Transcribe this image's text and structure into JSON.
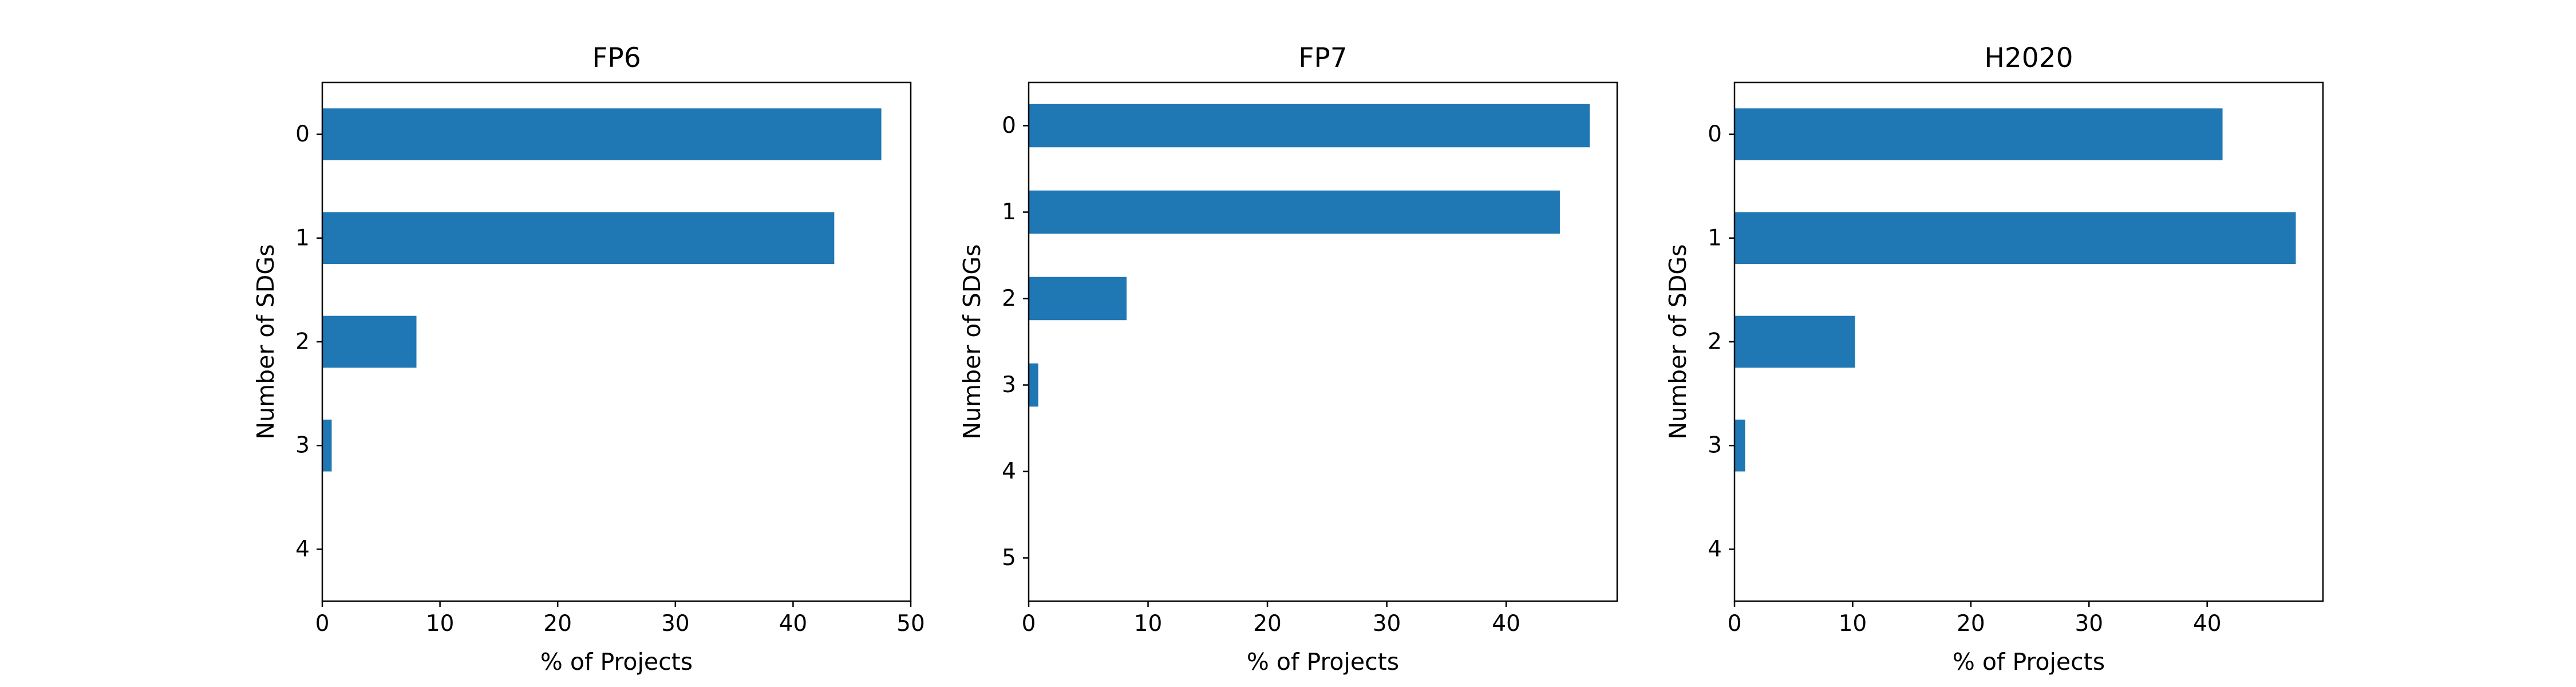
{
  "chart_data": [
    {
      "type": "bar",
      "orientation": "horizontal",
      "title": "FP6",
      "xlabel": "% of Projects",
      "ylabel": "Number of SDGs",
      "categories": [
        "0",
        "1",
        "2",
        "3",
        "4"
      ],
      "values": [
        47.5,
        43.5,
        8.0,
        0.8,
        0.0
      ],
      "xlim": [
        0,
        50
      ],
      "xticks": [
        "0",
        "10",
        "20",
        "30",
        "40",
        "50"
      ],
      "grid": false,
      "color": "#1f77b4"
    },
    {
      "type": "bar",
      "orientation": "horizontal",
      "title": "FP7",
      "xlabel": "% of Projects",
      "ylabel": "Number of SDGs",
      "categories": [
        "0",
        "1",
        "2",
        "3",
        "4",
        "5"
      ],
      "values": [
        47.0,
        44.5,
        8.2,
        0.8,
        0.0,
        0.0
      ],
      "xlim": [
        0,
        49.3
      ],
      "xticks": [
        "0",
        "10",
        "20",
        "30",
        "40"
      ],
      "grid": false,
      "color": "#1f77b4"
    },
    {
      "type": "bar",
      "orientation": "horizontal",
      "title": "H2020",
      "xlabel": "% of Projects",
      "ylabel": "Number of SDGs",
      "categories": [
        "0",
        "1",
        "2",
        "3",
        "4"
      ],
      "values": [
        41.3,
        47.5,
        10.2,
        0.9,
        0.0
      ],
      "xlim": [
        0,
        49.8
      ],
      "xticks": [
        "0",
        "10",
        "20",
        "30",
        "40"
      ],
      "grid": false,
      "color": "#1f77b4"
    }
  ]
}
